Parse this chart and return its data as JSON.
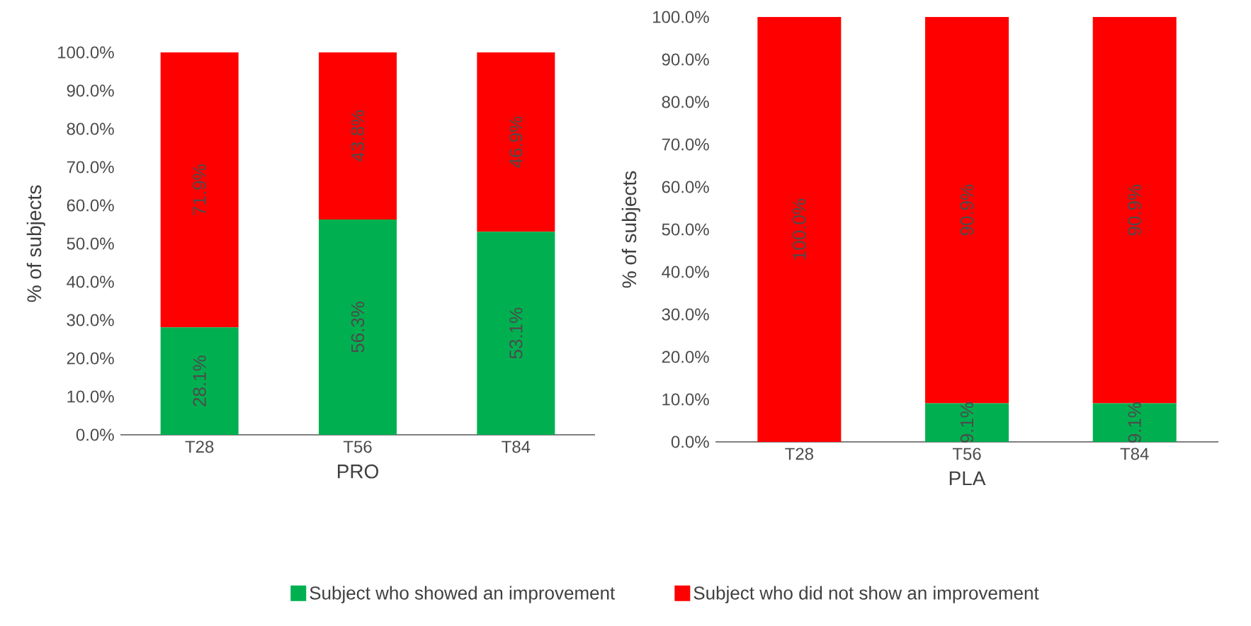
{
  "chart_data": [
    {
      "type": "bar",
      "stacked": true,
      "xlabel": "PRO",
      "ylabel": "% of subjects",
      "categories": [
        "T28",
        "T56",
        "T84"
      ],
      "ylim": [
        0,
        100
      ],
      "yticks": [
        {
          "value": 0,
          "label": "0.0%"
        },
        {
          "value": 10,
          "label": "10.0%"
        },
        {
          "value": 20,
          "label": "20.0%"
        },
        {
          "value": 30,
          "label": "30.0%"
        },
        {
          "value": 40,
          "label": "40.0%"
        },
        {
          "value": 50,
          "label": "50.0%"
        },
        {
          "value": 60,
          "label": "60.0%"
        },
        {
          "value": 70,
          "label": "70.0%"
        },
        {
          "value": 80,
          "label": "80.0%"
        },
        {
          "value": 90,
          "label": "90.0%"
        },
        {
          "value": 100,
          "label": "100.0%"
        }
      ],
      "legend": "bottom",
      "series": [
        {
          "name": "Subject who showed an improvement",
          "color": "#00b050",
          "values": [
            28.1,
            56.3,
            53.1
          ],
          "value_labels": [
            "28.1%",
            "56.3%",
            "53.1%"
          ]
        },
        {
          "name": "Subject who did not show an improvement",
          "color": "#ff0000",
          "values": [
            71.9,
            43.8,
            46.9
          ],
          "value_labels": [
            "71.9%",
            "43.8%",
            "46.9%"
          ]
        }
      ]
    },
    {
      "type": "bar",
      "stacked": true,
      "xlabel": "PLA",
      "ylabel": "% of subjects",
      "categories": [
        "T28",
        "T56",
        "T84"
      ],
      "ylim": [
        0,
        100
      ],
      "yticks": [
        {
          "value": 0,
          "label": "0.0%"
        },
        {
          "value": 10,
          "label": "10.0%"
        },
        {
          "value": 20,
          "label": "20.0%"
        },
        {
          "value": 30,
          "label": "30.0%"
        },
        {
          "value": 40,
          "label": "40.0%"
        },
        {
          "value": 50,
          "label": "50.0%"
        },
        {
          "value": 60,
          "label": "60.0%"
        },
        {
          "value": 70,
          "label": "70.0%"
        },
        {
          "value": 80,
          "label": "80.0%"
        },
        {
          "value": 90,
          "label": "90.0%"
        },
        {
          "value": 100,
          "label": "100.0%"
        }
      ],
      "series": [
        {
          "color": "#00b050",
          "values": [
            0,
            9.1,
            9.1
          ],
          "value_labels": [
            null,
            "9.1%",
            "9.1%"
          ]
        },
        {
          "color": "#ff0000",
          "values": [
            100.0,
            90.9,
            90.9
          ],
          "value_labels": [
            "100.0%",
            "90.9%",
            "90.9%"
          ]
        }
      ]
    }
  ]
}
